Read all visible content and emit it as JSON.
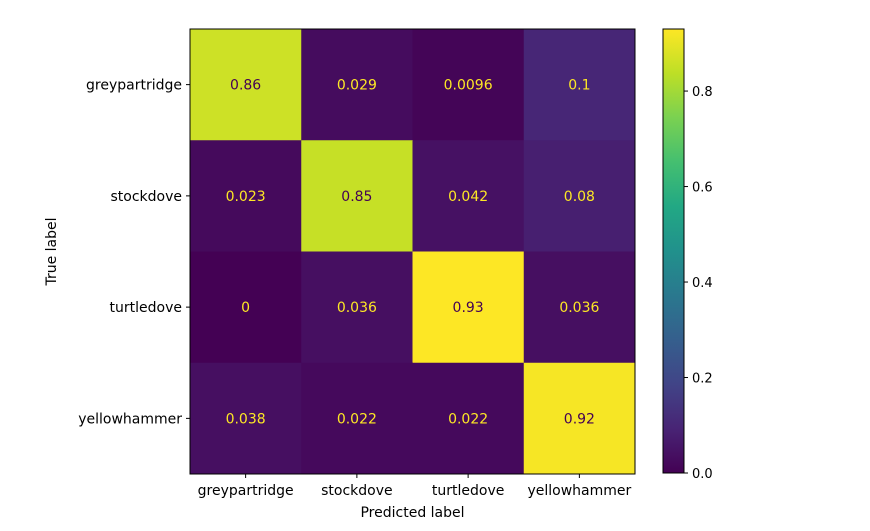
{
  "chart_data": {
    "type": "heatmap",
    "title": "",
    "xlabel": "Predicted label",
    "ylabel": "True label",
    "row_labels": [
      "greypartridge",
      "stockdove",
      "turtledove",
      "yellowhammer"
    ],
    "col_labels": [
      "greypartridge",
      "stockdove",
      "turtledove",
      "yellowhammer"
    ],
    "values": [
      [
        0.86,
        0.029,
        0.0096,
        0.1
      ],
      [
        0.023,
        0.85,
        0.042,
        0.08
      ],
      [
        0,
        0.036,
        0.93,
        0.036
      ],
      [
        0.038,
        0.022,
        0.022,
        0.92
      ]
    ],
    "value_labels": [
      [
        "0.86",
        "0.029",
        "0.0096",
        "0.1"
      ],
      [
        "0.023",
        "0.85",
        "0.042",
        "0.08"
      ],
      [
        "0",
        "0.036",
        "0.93",
        "0.036"
      ],
      [
        "0.038",
        "0.022",
        "0.022",
        "0.92"
      ]
    ],
    "colormap": "viridis",
    "colorbar": {
      "range": [
        0,
        0.93
      ],
      "ticks": [
        0.0,
        0.2,
        0.4,
        0.6,
        0.8
      ],
      "tick_labels": [
        "0.0",
        "0.2",
        "0.4",
        "0.6",
        "0.8"
      ]
    },
    "text_colors": {
      "on_dark": "#fde725",
      "on_light": "#440154"
    },
    "grid": false
  }
}
